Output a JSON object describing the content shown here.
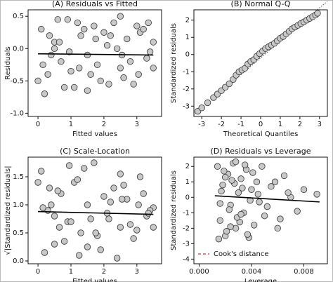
{
  "chart_data": [
    {
      "type": "scatter",
      "title": "(A) Residuals vs Fitted",
      "xlabel": "Fitted values",
      "ylabel": "Residuals",
      "xlim": [
        -0.3,
        3.75
      ],
      "ylim": [
        -1.05,
        0.6
      ],
      "xticks": [
        0,
        1,
        2,
        3
      ],
      "yticks": [
        {
          "value": -1,
          "label": "-1.0"
        },
        -0.5,
        {
          "value": 0,
          "label": "0.0"
        },
        0.5
      ],
      "point_color": "#c8c8c8",
      "points": {
        "x": [
          0.1,
          0.3,
          0.5,
          0.7,
          0.9,
          1.1,
          1.3,
          1.5,
          1.7,
          1.9,
          2.1,
          2.3,
          2.5,
          2.7,
          2.9,
          3.1,
          3.3,
          3.5,
          0.2,
          0.6,
          1.0,
          1.4,
          1.8,
          2.2,
          2.6,
          3.0,
          3.4,
          0.4,
          0.8,
          1.2,
          1.6,
          2.0,
          2.4,
          2.8,
          3.2,
          0.0,
          0.5,
          1.5,
          2.5,
          3.5,
          0.15,
          0.95,
          1.75,
          2.55,
          3.35,
          0.35,
          1.25,
          2.15,
          3.05,
          0.65
        ],
        "y": [
          0.3,
          -0.4,
          0.1,
          -0.2,
          0.45,
          -0.6,
          0.2,
          -0.1,
          0.35,
          -0.5,
          0.05,
          0.4,
          -0.3,
          0.15,
          -0.55,
          0.25,
          -0.15,
          0.1,
          -0.7,
          0.45,
          -0.35,
          0.3,
          -0.25,
          0.2,
          -0.45,
          0.35,
          -0.05,
          -0.1,
          -0.6,
          0.4,
          -0.4,
          0.25,
          0.0,
          -0.2,
          0.3,
          -0.5,
          0.0,
          -0.65,
          0.5,
          -0.3,
          -0.25,
          -0.05,
          0.15,
          -0.1,
          0.4,
          0.2,
          -0.3,
          -0.55,
          -0.4,
          0.1
        ]
      },
      "fit": {
        "x": [
          0,
          3.5
        ],
        "y": [
          -0.08,
          -0.1
        ]
      }
    },
    {
      "type": "scatter",
      "title": "(B) Normal Q-Q",
      "xlabel": "Theoretical Quantiles",
      "ylabel": "Standardized residuals",
      "xlim": [
        -3.4,
        3.4
      ],
      "ylim": [
        -3.6,
        2.6
      ],
      "xticks": [
        -3,
        -2,
        -1,
        0,
        1,
        2,
        3
      ],
      "yticks": [
        -3,
        -2,
        -1,
        0,
        1,
        2
      ],
      "point_color": "#c8c8c8",
      "points": {
        "x": [
          -3.2,
          -3.0,
          -2.7,
          -2.4,
          -2.2,
          -2.0,
          -1.8,
          -1.6,
          -1.4,
          -1.25,
          -1.1,
          -0.95,
          -0.8,
          -0.65,
          -0.5,
          -0.35,
          -0.2,
          -0.05,
          0.1,
          0.25,
          0.4,
          0.55,
          0.7,
          0.85,
          1.0,
          1.15,
          1.3,
          1.45,
          1.6,
          1.75,
          1.9,
          2.05,
          2.2,
          2.35,
          2.5,
          2.65,
          2.8,
          2.9
        ],
        "y": [
          -3.3,
          -3.1,
          -2.8,
          -2.5,
          -2.3,
          -2.1,
          -1.9,
          -1.7,
          -1.45,
          -1.2,
          -1.0,
          -0.9,
          -0.8,
          -0.55,
          -0.4,
          -0.3,
          -0.1,
          0.05,
          0.2,
          0.35,
          0.45,
          0.55,
          0.65,
          0.8,
          0.95,
          1.05,
          1.2,
          1.35,
          1.5,
          1.6,
          1.7,
          1.8,
          1.9,
          2.0,
          2.1,
          2.2,
          2.3,
          2.4
        ]
      },
      "reference_line": {
        "x": [
          -3.4,
          3.4
        ],
        "y": [
          -3.5,
          3.1
        ]
      }
    },
    {
      "type": "scatter",
      "title": "(C) Scale-Location",
      "xlabel": "Fitted values",
      "ylabel": "√|Standardized residuals|",
      "xlim": [
        -0.3,
        3.75
      ],
      "ylim": [
        -0.05,
        1.85
      ],
      "xticks": [
        0,
        1,
        2,
        3
      ],
      "yticks": [
        {
          "value": 0,
          "label": "0.0"
        },
        0.5,
        {
          "value": 1,
          "label": "1.0"
        },
        1.5
      ],
      "point_color": "#c8c8c8",
      "points": {
        "x": [
          0.1,
          0.3,
          0.5,
          0.7,
          0.9,
          1.1,
          1.3,
          1.5,
          1.7,
          1.9,
          2.1,
          2.3,
          2.5,
          2.7,
          2.9,
          3.1,
          3.3,
          3.5,
          0.2,
          0.6,
          1.0,
          1.4,
          1.8,
          2.2,
          2.6,
          3.0,
          3.4,
          0.4,
          0.8,
          1.2,
          1.6,
          2.0,
          2.4,
          2.8,
          3.2,
          0.0,
          0.5,
          1.5,
          2.5,
          3.5,
          0.15,
          0.95,
          1.75,
          2.55,
          3.35,
          0.35,
          1.25,
          2.15,
          3.05,
          0.65
        ],
        "y": [
          1.6,
          0.9,
          0.3,
          1.2,
          0.7,
          1.4,
          0.5,
          1.0,
          1.75,
          0.2,
          0.85,
          1.3,
          0.6,
          1.1,
          0.4,
          1.5,
          0.8,
          0.95,
          0.15,
          1.25,
          0.7,
          1.65,
          0.45,
          1.05,
          1.35,
          0.55,
          0.9,
          1.0,
          0.35,
          1.45,
          0.75,
          1.15,
          0.05,
          0.65,
          1.2,
          1.4,
          0.8,
          0.25,
          1.55,
          0.6,
          0.95,
          1.7,
          0.5,
          1.1,
          0.85,
          1.3,
          0.1,
          0.75,
          1.0,
          0.6
        ]
      },
      "fit": {
        "x": [
          0,
          3.5
        ],
        "y": [
          0.88,
          0.83
        ]
      }
    },
    {
      "type": "scatter",
      "title": "(D) Residuals vs Leverage",
      "xlabel": "Leverage",
      "ylabel": "Standardized residuals",
      "xlim": [
        -0.0004,
        0.0098
      ],
      "ylim": [
        -4.3,
        2.6
      ],
      "xticks": [
        {
          "value": 0,
          "label": "0.000"
        },
        0.004,
        0.008
      ],
      "yticks": [
        -4,
        -3,
        -2,
        -1,
        0,
        1,
        2
      ],
      "point_color": "#c8c8c8",
      "points": {
        "x": [
          0.0014,
          0.0016,
          0.0018,
          0.002,
          0.0022,
          0.0024,
          0.0026,
          0.0028,
          0.003,
          0.0032,
          0.0034,
          0.0036,
          0.0038,
          0.004,
          0.0042,
          0.0044,
          0.0046,
          0.0048,
          0.005,
          0.0055,
          0.006,
          0.0065,
          0.007,
          0.0015,
          0.0019,
          0.0023,
          0.0027,
          0.0031,
          0.0035,
          0.0039,
          0.0017,
          0.0021,
          0.0025,
          0.0029,
          0.0033,
          0.0037,
          0.0041,
          0.0045,
          0.0052,
          0.0058,
          0.0062,
          0.0068,
          0.0075,
          0.008,
          0.009,
          0.0016,
          0.002,
          0.0024,
          0.0028,
          0.0032
        ],
        "y": [
          2.0,
          -1.5,
          0.8,
          -2.5,
          1.5,
          -0.5,
          2.2,
          -2.0,
          0.3,
          1.2,
          -1.0,
          1.8,
          -2.6,
          0.5,
          -1.8,
          1.0,
          -0.3,
          2.0,
          -1.2,
          0.7,
          -2.0,
          1.4,
          0.0,
          -2.7,
          1.7,
          -0.8,
          0.9,
          -1.6,
          2.1,
          -0.2,
          0.4,
          -2.2,
          1.1,
          -1.3,
          0.6,
          -2.4,
          1.6,
          0.2,
          -0.6,
          1.0,
          -1.4,
          0.3,
          -0.9,
          0.5,
          0.2,
          -0.4,
          1.3,
          -1.9,
          2.3,
          -1.1
        ]
      },
      "fit": {
        "x": [
          0.0012,
          0.0092
        ],
        "y": [
          0.1,
          -0.3
        ]
      },
      "legend": {
        "label": "Cook's distance",
        "color": "#e03030"
      }
    }
  ]
}
